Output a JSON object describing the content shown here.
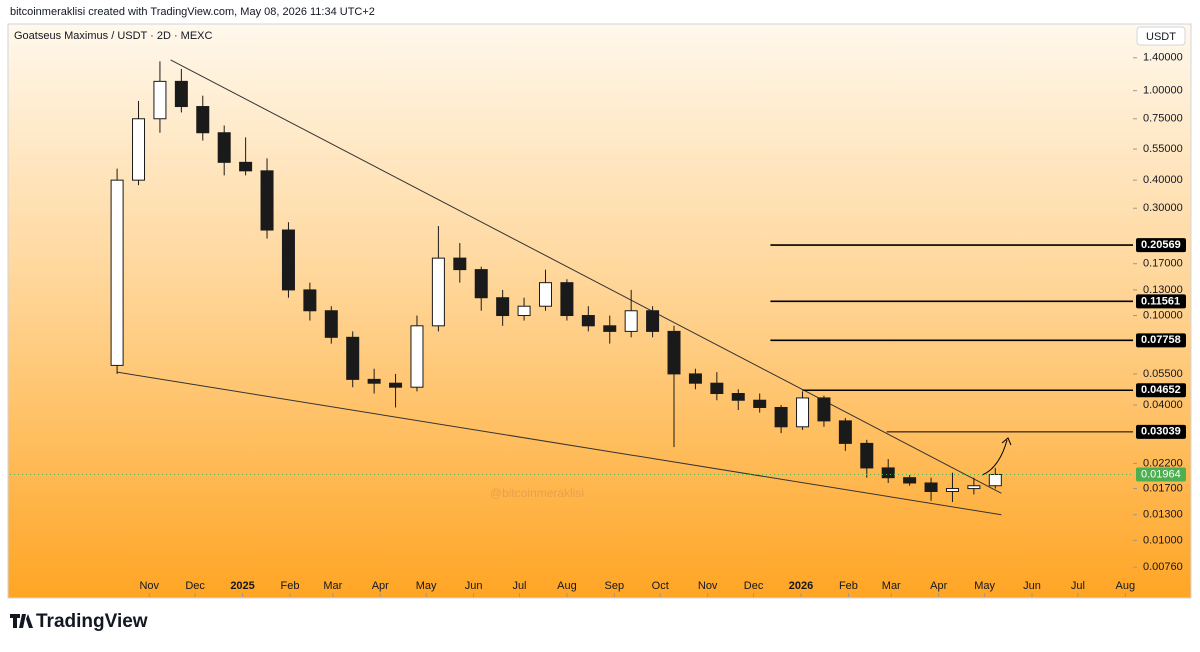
{
  "header": {
    "credit": "bitcoinmeraklisi created with TradingView.com, May 08, 2026 11:34 UTC+2",
    "brand": "TradingView"
  },
  "chart_data": {
    "type": "candlestick",
    "title": "Goatseus Maximus / USDT · 2D · MEXC",
    "currency": "USDT",
    "watermark": "@bitcoinmeraklisi",
    "log_scale": true,
    "up_color": "#ffffff",
    "down_color": "#1a1a1a",
    "x": [
      "2024-10-11",
      "2024-10-25",
      "2024-11-08",
      "2024-11-22",
      "2024-12-06",
      "2024-12-20",
      "2025-01-03",
      "2025-01-17",
      "2025-01-31",
      "2025-02-14",
      "2025-02-28",
      "2025-03-14",
      "2025-03-28",
      "2025-04-11",
      "2025-04-25",
      "2025-05-09",
      "2025-05-23",
      "2025-06-06",
      "2025-06-20",
      "2025-07-04",
      "2025-07-18",
      "2025-08-01",
      "2025-08-15",
      "2025-08-29",
      "2025-09-12",
      "2025-09-26",
      "2025-10-10",
      "2025-10-24",
      "2025-11-07",
      "2025-11-21",
      "2025-12-05",
      "2025-12-19",
      "2026-01-02",
      "2026-01-16",
      "2026-01-30",
      "2026-02-13",
      "2026-02-27",
      "2026-03-13",
      "2026-03-27",
      "2026-04-10",
      "2026-04-24",
      "2026-05-08"
    ],
    "open": [
      0.06,
      0.4,
      0.75,
      1.1,
      0.85,
      0.65,
      0.48,
      0.44,
      0.24,
      0.13,
      0.105,
      0.08,
      0.052,
      0.05,
      0.048,
      0.09,
      0.18,
      0.16,
      0.12,
      0.1,
      0.11,
      0.14,
      0.1,
      0.09,
      0.085,
      0.105,
      0.085,
      0.055,
      0.05,
      0.045,
      0.042,
      0.039,
      0.032,
      0.043,
      0.034,
      0.027,
      0.021,
      0.019,
      0.018,
      0.0165,
      0.017,
      0.0175
    ],
    "high": [
      0.45,
      0.9,
      1.35,
      1.25,
      0.95,
      0.7,
      0.62,
      0.5,
      0.26,
      0.14,
      0.11,
      0.085,
      0.058,
      0.055,
      0.1,
      0.25,
      0.21,
      0.165,
      0.13,
      0.12,
      0.16,
      0.145,
      0.11,
      0.1,
      0.13,
      0.11,
      0.09,
      0.058,
      0.056,
      0.047,
      0.045,
      0.04,
      0.046,
      0.044,
      0.035,
      0.028,
      0.023,
      0.0195,
      0.019,
      0.02,
      0.019,
      0.021
    ],
    "low": [
      0.055,
      0.38,
      0.65,
      0.8,
      0.6,
      0.42,
      0.42,
      0.22,
      0.12,
      0.095,
      0.075,
      0.048,
      0.045,
      0.039,
      0.046,
      0.085,
      0.14,
      0.105,
      0.09,
      0.095,
      0.105,
      0.095,
      0.085,
      0.075,
      0.08,
      0.08,
      0.026,
      0.047,
      0.042,
      0.038,
      0.037,
      0.03,
      0.031,
      0.032,
      0.025,
      0.019,
      0.018,
      0.0175,
      0.015,
      0.0148,
      0.016,
      0.017
    ],
    "close": [
      0.4,
      0.75,
      1.1,
      0.85,
      0.65,
      0.48,
      0.44,
      0.24,
      0.13,
      0.105,
      0.08,
      0.052,
      0.05,
      0.048,
      0.09,
      0.18,
      0.16,
      0.12,
      0.1,
      0.11,
      0.14,
      0.1,
      0.09,
      0.085,
      0.105,
      0.085,
      0.055,
      0.05,
      0.045,
      0.042,
      0.039,
      0.032,
      0.043,
      0.034,
      0.027,
      0.021,
      0.019,
      0.018,
      0.0165,
      0.017,
      0.0175,
      0.01964
    ],
    "xlim": [
      "2024-08-02",
      "2026-08-06"
    ],
    "xticks": [
      {
        "value": "2024-11-01",
        "label": "Nov"
      },
      {
        "value": "2024-12-01",
        "label": "Dec"
      },
      {
        "value": "2025-01-01",
        "label": "2025"
      },
      {
        "value": "2025-02-01",
        "label": "Feb"
      },
      {
        "value": "2025-03-01",
        "label": "Mar"
      },
      {
        "value": "2025-04-01",
        "label": "Apr"
      },
      {
        "value": "2025-05-01",
        "label": "May"
      },
      {
        "value": "2025-06-01",
        "label": "Jun"
      },
      {
        "value": "2025-07-01",
        "label": "Jul"
      },
      {
        "value": "2025-08-01",
        "label": "Aug"
      },
      {
        "value": "2025-09-01",
        "label": "Sep"
      },
      {
        "value": "2025-10-01",
        "label": "Oct"
      },
      {
        "value": "2025-11-01",
        "label": "Nov"
      },
      {
        "value": "2025-12-01",
        "label": "Dec"
      },
      {
        "value": "2026-01-01",
        "label": "2026"
      },
      {
        "value": "2026-02-01",
        "label": "Feb"
      },
      {
        "value": "2026-03-01",
        "label": "Mar"
      },
      {
        "value": "2026-04-01",
        "label": "Apr"
      },
      {
        "value": "2026-05-01",
        "label": "May"
      },
      {
        "value": "2026-06-01",
        "label": "Jun"
      },
      {
        "value": "2026-07-01",
        "label": "Jul"
      },
      {
        "value": "2026-08-01",
        "label": "Aug"
      }
    ],
    "ylim": [
      0.0056,
      1.58
    ],
    "yticks": [
      {
        "value": 1.4,
        "label": "1.40000"
      },
      {
        "value": 1.0,
        "label": "1.00000"
      },
      {
        "value": 0.75,
        "label": "0.75000"
      },
      {
        "value": 0.55,
        "label": "0.55000"
      },
      {
        "value": 0.4,
        "label": "0.40000"
      },
      {
        "value": 0.3,
        "label": "0.30000"
      },
      {
        "value": 0.17,
        "label": "0.17000"
      },
      {
        "value": 0.13,
        "label": "0.13000"
      },
      {
        "value": 0.1,
        "label": "0.10000"
      },
      {
        "value": 0.055,
        "label": "0.05500"
      },
      {
        "value": 0.04,
        "label": "0.04000"
      },
      {
        "value": 0.022,
        "label": "0.02200"
      },
      {
        "value": 0.017,
        "label": "0.01700"
      },
      {
        "value": 0.013,
        "label": "0.01300"
      },
      {
        "value": 0.01,
        "label": "0.01000"
      },
      {
        "value": 0.0076,
        "label": "0.00760"
      }
    ],
    "levels": [
      {
        "value": 0.20569,
        "from": "2025-12-12"
      },
      {
        "value": 0.11561,
        "from": "2025-12-12"
      },
      {
        "value": 0.07758,
        "from": "2025-12-12"
      },
      {
        "value": 0.04652,
        "from": "2026-01-02"
      },
      {
        "value": 0.03039,
        "from": "2026-02-26"
      }
    ],
    "trendlines": [
      {
        "x": [
          "2024-11-15",
          "2026-05-12"
        ],
        "y": [
          1.37,
          0.0162
        ]
      },
      {
        "x": [
          "2024-10-11",
          "2026-05-12"
        ],
        "y": [
          0.056,
          0.013
        ]
      }
    ],
    "last_price": 0.01964,
    "last_color": "#4caf50"
  }
}
